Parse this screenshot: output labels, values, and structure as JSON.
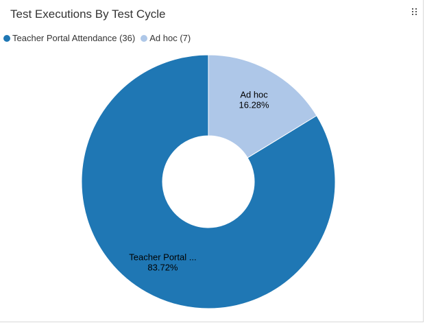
{
  "header": {
    "title": "Test Executions By Test Cycle"
  },
  "legend": [
    {
      "label": "Teacher Portal Attendance (36)",
      "color": "#1f77b4"
    },
    {
      "label": "Ad hoc (7)",
      "color": "#aec7e8"
    }
  ],
  "chart_data": {
    "type": "pie",
    "donut": true,
    "title": "Test Executions By Test Cycle",
    "legend_position": "top-left",
    "categories": [
      "Teacher Portal Attendance",
      "Ad hoc"
    ],
    "values": [
      36,
      7
    ],
    "percentages": [
      83.72,
      16.28
    ],
    "colors": [
      "#1f77b4",
      "#aec7e8"
    ],
    "slice_labels": [
      {
        "name": "Teacher Portal ...",
        "percent": "83.72%"
      },
      {
        "name": "Ad hoc",
        "percent": "16.28%"
      }
    ]
  }
}
